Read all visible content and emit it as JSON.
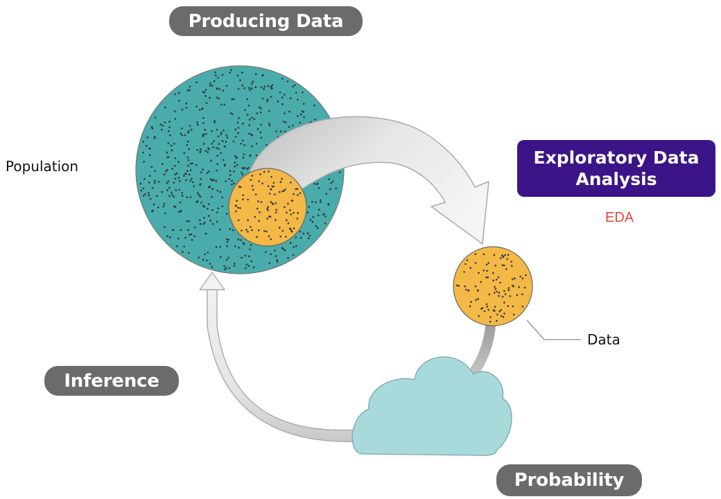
{
  "labels": {
    "producing_data": "Producing Data",
    "population": "Population",
    "eda_line1": "Exploratory Data",
    "eda_line2": "Analysis",
    "eda_abbrev": "EDA",
    "data": "Data",
    "inference": "Inference",
    "probability": "Probability"
  },
  "colors": {
    "population_fill": "#4aabab",
    "sample_fill": "#f3b845",
    "cloud_fill": "#a8dadb",
    "dot": "#2f3b3b",
    "pill_bg": "#6b6b6b",
    "eda_bg": "#3b1487",
    "eda_abbrev": "#e4473a",
    "arrow_fill": "#e9e9e9",
    "arrow_stroke": "#a9a9a9"
  }
}
